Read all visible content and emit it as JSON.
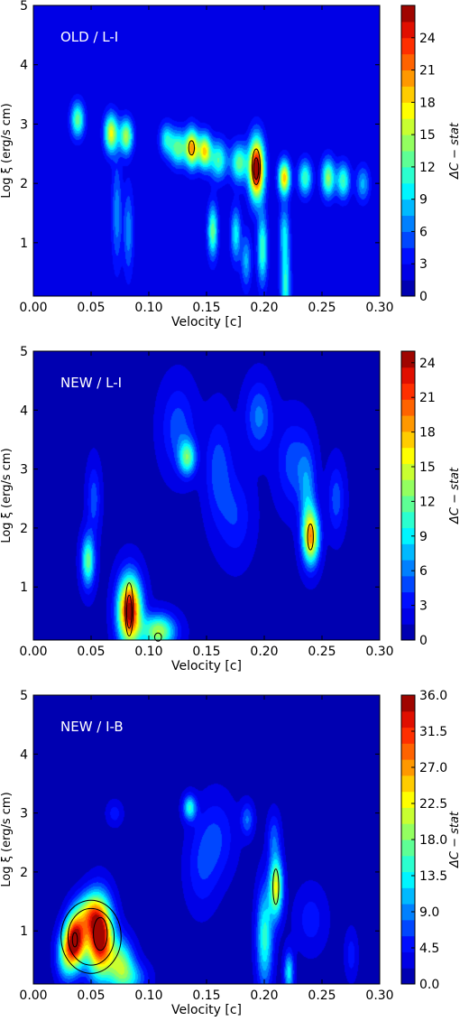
{
  "chart_data": [
    {
      "type": "heatmap",
      "panel_label": "OLD / L-I",
      "xlabel": "Velocity [c]",
      "ylabel": "Log ξ (erg/s cm)",
      "colorbar_label": "ΔC − stat",
      "xlim": [
        0.0,
        0.3
      ],
      "ylim": [
        0.1,
        5.0
      ],
      "xticks": [
        "0.00",
        "0.05",
        "0.10",
        "0.15",
        "0.20",
        "0.25",
        "0.30"
      ],
      "yticks": [
        "1",
        "2",
        "3",
        "4",
        "5"
      ],
      "colorbar_ticks": [
        "0",
        "3",
        "6",
        "9",
        "12",
        "15",
        "18",
        "21",
        "24"
      ],
      "zlim": [
        0,
        27
      ],
      "background_value": 2,
      "blobs": [
        {
          "v": 0.038,
          "logxi": 3.08,
          "peak": 11,
          "sv": 0.004,
          "sl": 0.2
        },
        {
          "v": 0.067,
          "logxi": 2.85,
          "peak": 15,
          "sv": 0.004,
          "sl": 0.22
        },
        {
          "v": 0.08,
          "logxi": 2.8,
          "peak": 13,
          "sv": 0.004,
          "sl": 0.2
        },
        {
          "v": 0.115,
          "logxi": 2.75,
          "peak": 8,
          "sv": 0.004,
          "sl": 0.18
        },
        {
          "v": 0.125,
          "logxi": 2.6,
          "peak": 11,
          "sv": 0.005,
          "sl": 0.2
        },
        {
          "v": 0.137,
          "logxi": 2.6,
          "peak": 18,
          "sv": 0.004,
          "sl": 0.22
        },
        {
          "v": 0.148,
          "logxi": 2.55,
          "peak": 16,
          "sv": 0.004,
          "sl": 0.2
        },
        {
          "v": 0.16,
          "logxi": 2.4,
          "peak": 10,
          "sv": 0.005,
          "sl": 0.22
        },
        {
          "v": 0.178,
          "logxi": 2.35,
          "peak": 11,
          "sv": 0.005,
          "sl": 0.22
        },
        {
          "v": 0.193,
          "logxi": 2.25,
          "peak": 26,
          "sv": 0.0045,
          "sl": 0.35
        },
        {
          "v": 0.217,
          "logxi": 2.1,
          "peak": 17,
          "sv": 0.0035,
          "sl": 0.2
        },
        {
          "v": 0.235,
          "logxi": 2.1,
          "peak": 10,
          "sv": 0.004,
          "sl": 0.2
        },
        {
          "v": 0.255,
          "logxi": 2.1,
          "peak": 12,
          "sv": 0.004,
          "sl": 0.22
        },
        {
          "v": 0.268,
          "logxi": 2.05,
          "peak": 10,
          "sv": 0.004,
          "sl": 0.2
        },
        {
          "v": 0.285,
          "logxi": 2.0,
          "peak": 6,
          "sv": 0.004,
          "sl": 0.2
        },
        {
          "v": 0.155,
          "logxi": 1.2,
          "peak": 11,
          "sv": 0.003,
          "sl": 0.3
        },
        {
          "v": 0.175,
          "logxi": 1.15,
          "peak": 8,
          "sv": 0.003,
          "sl": 0.3
        },
        {
          "v": 0.198,
          "logxi": 0.9,
          "peak": 10,
          "sv": 0.003,
          "sl": 0.4
        },
        {
          "v": 0.218,
          "logxi": 0.3,
          "peak": 9,
          "sv": 0.003,
          "sl": 0.5
        },
        {
          "v": 0.217,
          "logxi": 1.2,
          "peak": 6,
          "sv": 0.003,
          "sl": 0.3
        },
        {
          "v": 0.072,
          "logxi": 1.5,
          "peak": 5,
          "sv": 0.003,
          "sl": 0.6
        },
        {
          "v": 0.082,
          "logxi": 1.2,
          "peak": 5,
          "sv": 0.003,
          "sl": 0.5
        },
        {
          "v": 0.184,
          "logxi": 0.7,
          "peak": 6,
          "sv": 0.003,
          "sl": 0.3
        }
      ],
      "contours": [
        {
          "v": 0.137,
          "logxi": 2.6,
          "rv": 0.0025,
          "rl": 0.12
        },
        {
          "v": 0.193,
          "logxi": 2.28,
          "rv": 0.0035,
          "rl": 0.3
        },
        {
          "v": 0.193,
          "logxi": 2.25,
          "rv": 0.0022,
          "rl": 0.18
        }
      ]
    },
    {
      "type": "heatmap",
      "panel_label": "NEW / L-I",
      "xlabel": "Velocity [c]",
      "ylabel": "Log ξ (erg/s cm)",
      "colorbar_label": "ΔC − stat",
      "xlim": [
        0.0,
        0.3
      ],
      "ylim": [
        0.1,
        5.0
      ],
      "xticks": [
        "0.00",
        "0.05",
        "0.10",
        "0.15",
        "0.20",
        "0.25",
        "0.30"
      ],
      "yticks": [
        "1",
        "2",
        "3",
        "4",
        "5"
      ],
      "colorbar_ticks": [
        "0",
        "3",
        "6",
        "9",
        "12",
        "15",
        "18",
        "21",
        "24"
      ],
      "zlim": [
        0,
        25
      ],
      "background_value": 1,
      "blobs": [
        {
          "v": 0.047,
          "logxi": 1.45,
          "peak": 11,
          "sv": 0.004,
          "sl": 0.3
        },
        {
          "v": 0.052,
          "logxi": 2.5,
          "peak": 4,
          "sv": 0.004,
          "sl": 0.4
        },
        {
          "v": 0.083,
          "logxi": 0.6,
          "peak": 24,
          "sv": 0.007,
          "sl": 0.4
        },
        {
          "v": 0.108,
          "logxi": 0.25,
          "peak": 13,
          "sv": 0.01,
          "sl": 0.2
        },
        {
          "v": 0.133,
          "logxi": 3.2,
          "peak": 10,
          "sv": 0.005,
          "sl": 0.2
        },
        {
          "v": 0.125,
          "logxi": 3.7,
          "peak": 4,
          "sv": 0.01,
          "sl": 0.5
        },
        {
          "v": 0.16,
          "logxi": 3.0,
          "peak": 4,
          "sv": 0.008,
          "sl": 0.6
        },
        {
          "v": 0.195,
          "logxi": 3.9,
          "peak": 5,
          "sv": 0.008,
          "sl": 0.4
        },
        {
          "v": 0.225,
          "logxi": 3.1,
          "peak": 4,
          "sv": 0.01,
          "sl": 0.5
        },
        {
          "v": 0.237,
          "logxi": 2.6,
          "peak": 5,
          "sv": 0.005,
          "sl": 0.5
        },
        {
          "v": 0.24,
          "logxi": 1.85,
          "peak": 17,
          "sv": 0.005,
          "sl": 0.32
        },
        {
          "v": 0.262,
          "logxi": 2.5,
          "peak": 4,
          "sv": 0.005,
          "sl": 0.4
        },
        {
          "v": 0.175,
          "logxi": 2.2,
          "peak": 3,
          "sv": 0.01,
          "sl": 0.5
        }
      ],
      "contours": [
        {
          "v": 0.083,
          "logxi": 0.62,
          "rv": 0.0035,
          "rl": 0.45
        },
        {
          "v": 0.083,
          "logxi": 0.58,
          "rv": 0.0022,
          "rl": 0.28
        },
        {
          "v": 0.108,
          "logxi": 0.15,
          "rv": 0.003,
          "rl": 0.07
        },
        {
          "v": 0.24,
          "logxi": 1.85,
          "rv": 0.0025,
          "rl": 0.22
        }
      ]
    },
    {
      "type": "heatmap",
      "panel_label": "NEW / I-B",
      "xlabel": "Velocity [c]",
      "ylabel": "Log ξ (erg/s cm)",
      "colorbar_label": "ΔC − stat",
      "xlim": [
        0.0,
        0.3
      ],
      "ylim": [
        0.1,
        5.0
      ],
      "xticks": [
        "0.00",
        "0.05",
        "0.10",
        "0.15",
        "0.20",
        "0.25",
        "0.30"
      ],
      "yticks": [
        "1",
        "2",
        "3",
        "4",
        "5"
      ],
      "colorbar_ticks": [
        "0.0",
        "4.5",
        "9.0",
        "13.5",
        "18.0",
        "22.5",
        "27.0",
        "31.5",
        "36.0"
      ],
      "zlim": [
        0,
        36
      ],
      "background_value": 1,
      "blobs": [
        {
          "v": 0.036,
          "logxi": 0.85,
          "peak": 33,
          "sv": 0.006,
          "sl": 0.3
        },
        {
          "v": 0.057,
          "logxi": 0.9,
          "peak": 36,
          "sv": 0.008,
          "sl": 0.45
        },
        {
          "v": 0.047,
          "logxi": 1.3,
          "peak": 14,
          "sv": 0.008,
          "sl": 0.25
        },
        {
          "v": 0.075,
          "logxi": 0.45,
          "peak": 16,
          "sv": 0.008,
          "sl": 0.3
        },
        {
          "v": 0.085,
          "logxi": 0.2,
          "peak": 8,
          "sv": 0.01,
          "sl": 0.2
        },
        {
          "v": 0.028,
          "logxi": 0.6,
          "peak": 14,
          "sv": 0.006,
          "sl": 0.3
        },
        {
          "v": 0.135,
          "logxi": 3.1,
          "peak": 13,
          "sv": 0.004,
          "sl": 0.15
        },
        {
          "v": 0.158,
          "logxi": 2.6,
          "peak": 5,
          "sv": 0.012,
          "sl": 0.5
        },
        {
          "v": 0.185,
          "logxi": 2.9,
          "peak": 7,
          "sv": 0.004,
          "sl": 0.2
        },
        {
          "v": 0.21,
          "logxi": 1.75,
          "peak": 21,
          "sv": 0.004,
          "sl": 0.35
        },
        {
          "v": 0.2,
          "logxi": 0.9,
          "peak": 14,
          "sv": 0.005,
          "sl": 0.6
        },
        {
          "v": 0.208,
          "logxi": 2.6,
          "peak": 6,
          "sv": 0.004,
          "sl": 0.3
        },
        {
          "v": 0.221,
          "logxi": 0.3,
          "peak": 12,
          "sv": 0.003,
          "sl": 0.25
        },
        {
          "v": 0.24,
          "logxi": 1.2,
          "peak": 4,
          "sv": 0.01,
          "sl": 0.4
        },
        {
          "v": 0.145,
          "logxi": 2.0,
          "peak": 4,
          "sv": 0.01,
          "sl": 0.5
        },
        {
          "v": 0.275,
          "logxi": 0.6,
          "peak": 4,
          "sv": 0.004,
          "sl": 0.3
        },
        {
          "v": 0.07,
          "logxi": 3.0,
          "peak": 4,
          "sv": 0.005,
          "sl": 0.15
        }
      ],
      "contours": [
        {
          "v": 0.05,
          "logxi": 0.9,
          "rv": 0.026,
          "rl": 0.62
        },
        {
          "v": 0.05,
          "logxi": 0.9,
          "rv": 0.02,
          "rl": 0.48
        },
        {
          "v": 0.036,
          "logxi": 0.85,
          "rv": 0.0022,
          "rl": 0.12
        },
        {
          "v": 0.058,
          "logxi": 0.95,
          "rv": 0.006,
          "rl": 0.28
        },
        {
          "v": 0.21,
          "logxi": 1.75,
          "rv": 0.0025,
          "rl": 0.3
        }
      ]
    }
  ]
}
